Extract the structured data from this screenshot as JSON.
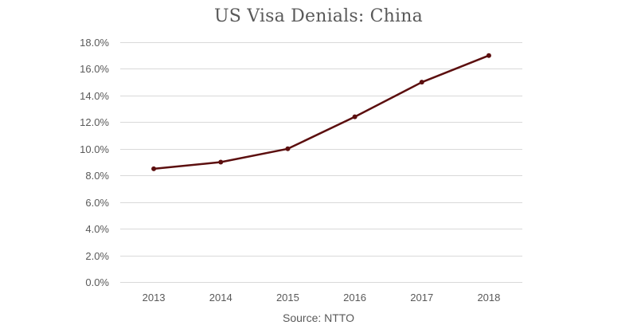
{
  "chart_data": {
    "type": "line",
    "title": "US Visa Denials: China",
    "source": "Source: NTTO",
    "categories": [
      "2013",
      "2014",
      "2015",
      "2016",
      "2017",
      "2018"
    ],
    "series": [
      {
        "values": [
          8.5,
          9.0,
          10.0,
          12.4,
          15.0,
          17.0
        ],
        "color": "#5c0f0f"
      }
    ],
    "y_ticks": [
      "0.0%",
      "2.0%",
      "4.0%",
      "6.0%",
      "8.0%",
      "10.0%",
      "12.0%",
      "14.0%",
      "16.0%",
      "18.0%"
    ],
    "ylim": [
      0,
      18
    ],
    "ytick_step": 2,
    "xlabel": "",
    "ylabel": "",
    "grid": true,
    "legend": "none",
    "grid_color": "#d9d9d9",
    "text_color": "#595959"
  }
}
